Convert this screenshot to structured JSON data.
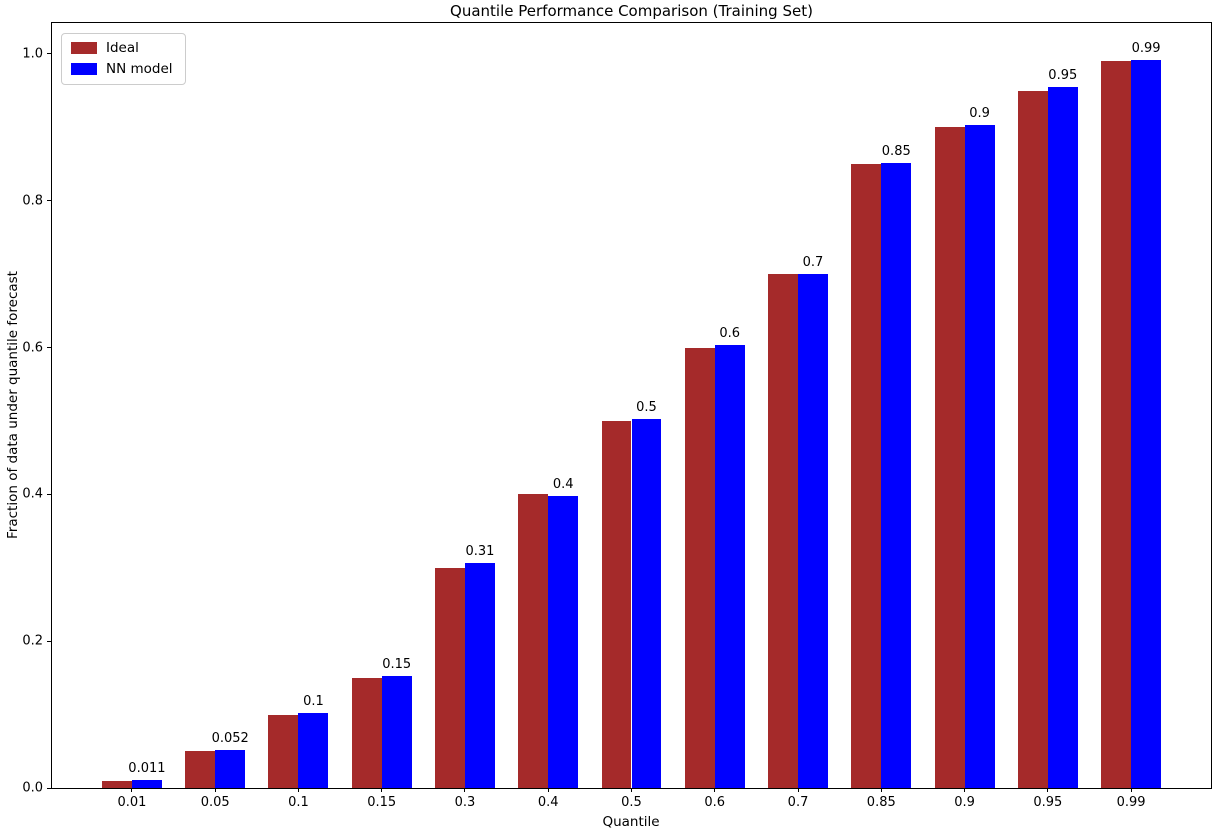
{
  "figure": {
    "title": "Quantile Performance Comparison (Training Set)",
    "xlabel": "Quantile",
    "ylabel": "Fraction of data under quantile forecast"
  },
  "chart_data": {
    "type": "bar",
    "title": "Quantile Performance Comparison (Training Set)",
    "xlabel": "Quantile",
    "ylabel": "Fraction of data under quantile forecast",
    "categories": [
      "0.01",
      "0.05",
      "0.1",
      "0.15",
      "0.3",
      "0.4",
      "0.5",
      "0.6",
      "0.7",
      "0.85",
      "0.9",
      "0.95",
      "0.99"
    ],
    "series": [
      {
        "name": "Ideal",
        "color": "#A52A2A",
        "values": [
          0.01,
          0.05,
          0.1,
          0.15,
          0.3,
          0.4,
          0.5,
          0.6,
          0.7,
          0.85,
          0.9,
          0.95,
          0.99
        ]
      },
      {
        "name": "NN model",
        "color": "#0000FF",
        "values": [
          0.011,
          0.052,
          0.102,
          0.152,
          0.306,
          0.398,
          0.503,
          0.604,
          0.7,
          0.851,
          0.903,
          0.955,
          0.992
        ]
      }
    ],
    "bar_labels": [
      "0.011",
      "0.052",
      "0.1",
      "0.15",
      "0.31",
      "0.4",
      "0.5",
      "0.6",
      "0.7",
      "0.85",
      "0.9",
      "0.95",
      "0.99"
    ],
    "yticks": [
      "0.0",
      "0.2",
      "0.4",
      "0.6",
      "0.8",
      "1.0"
    ],
    "ylim": [
      0,
      1.042
    ],
    "grid": false,
    "legend_position": "upper-left"
  }
}
